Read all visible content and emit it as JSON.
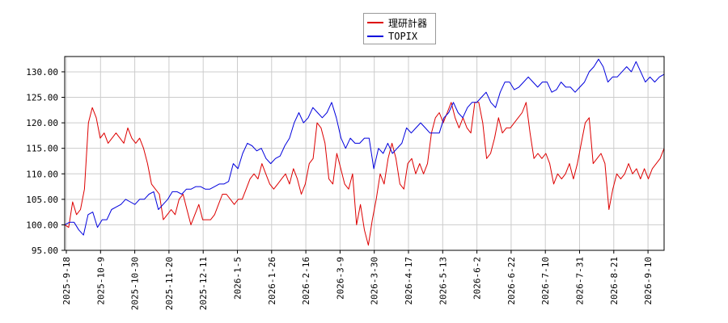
{
  "chart_data": {
    "type": "line",
    "title": "",
    "xlabel": "",
    "ylabel": "",
    "ylim": [
      95,
      133
    ],
    "y_ticks": [
      "95.00",
      "100.00",
      "105.00",
      "110.00",
      "115.00",
      "120.00",
      "125.00",
      "130.00"
    ],
    "x_ticks": [
      "2025-9-18",
      "2025-10-9",
      "2025-10-30",
      "2025-11-20",
      "2025-12-11",
      "2026-1-5",
      "2026-1-26",
      "2026-2-16",
      "2026-3-9",
      "2026-3-30",
      "2026-4-17",
      "2026-5-13",
      "2026-6-2",
      "2026-6-22",
      "2026-7-10",
      "2026-7-31",
      "2026-8-21",
      "2026-9-10"
    ],
    "grid": true,
    "legend_position": "top-center",
    "series": [
      {
        "name": "理研計器",
        "color": "#dd0000",
        "values": [
          100,
          99.5,
          104.5,
          102,
          103,
          107,
          120,
          123,
          121,
          117,
          118,
          116,
          117,
          118,
          117,
          116,
          119,
          117,
          116,
          117,
          115,
          112,
          108,
          107,
          106,
          101,
          102,
          103,
          102,
          105,
          106,
          103,
          100,
          102,
          104,
          101,
          101,
          101,
          102,
          104,
          106,
          106,
          105,
          104,
          105,
          105,
          107,
          109,
          110,
          109,
          112,
          110,
          108,
          107,
          108,
          109,
          110,
          108,
          111,
          109,
          106,
          108,
          112,
          113,
          120,
          119,
          116,
          109,
          108,
          114,
          111,
          108,
          107,
          110,
          100,
          104,
          99,
          96,
          101,
          105,
          110,
          108,
          113,
          116,
          113,
          108,
          107,
          112,
          113,
          110,
          112,
          110,
          112,
          118,
          121,
          122,
          120,
          122,
          124,
          121,
          119,
          121,
          119,
          118,
          124,
          124,
          120,
          113,
          114,
          117,
          121,
          118,
          119,
          119,
          120,
          121,
          122,
          124,
          118,
          113,
          114,
          113,
          114,
          112,
          108,
          110,
          109,
          110,
          112,
          109,
          112,
          116,
          120,
          121,
          112,
          113,
          114,
          112,
          103,
          107,
          110,
          109,
          110,
          112,
          110,
          111,
          109,
          111,
          109,
          111,
          112,
          113,
          115
        ]
      },
      {
        "name": "TOPIX",
        "color": "#0000dd",
        "values": [
          100,
          100.5,
          100.5,
          99,
          98,
          102,
          102.5,
          99.5,
          101,
          101,
          103,
          103.5,
          104,
          105,
          104.5,
          104,
          105,
          105,
          106,
          106.5,
          103,
          104,
          105,
          106.5,
          106.5,
          106,
          107,
          107,
          107.5,
          107.5,
          107,
          107,
          107.5,
          108,
          108,
          108.5,
          112,
          111,
          114,
          116,
          115.5,
          114.5,
          115,
          113,
          112,
          113,
          113.5,
          115.5,
          117,
          120,
          122,
          120,
          121,
          123,
          122,
          121,
          122,
          124,
          121,
          117,
          115,
          117,
          116,
          116,
          117,
          117,
          111,
          115,
          114,
          116,
          114,
          115,
          116,
          119,
          118,
          119,
          120,
          119,
          118,
          118,
          118,
          121,
          122,
          124,
          122,
          121,
          123,
          124,
          124,
          125,
          126,
          124,
          123,
          126,
          128,
          128,
          126.5,
          127,
          128,
          129,
          128,
          127,
          128,
          128,
          126,
          126.5,
          128,
          127,
          127,
          126,
          127,
          128,
          130,
          131,
          132.5,
          131,
          128,
          129,
          129,
          130,
          131,
          130,
          132,
          130,
          128,
          129,
          128,
          129,
          129.5
        ]
      }
    ]
  }
}
